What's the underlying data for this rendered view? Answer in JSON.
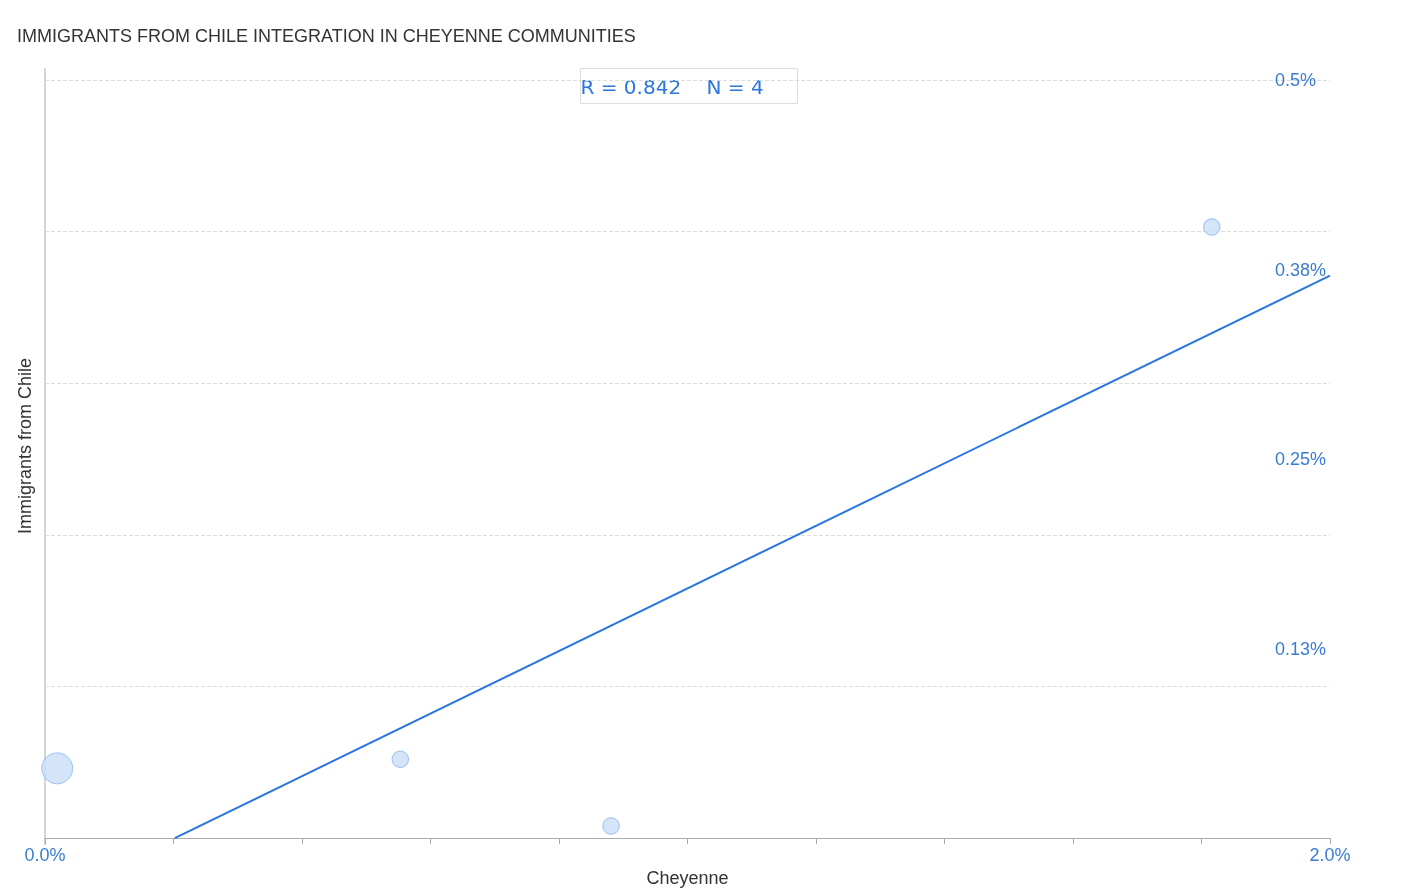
{
  "chart_data": {
    "type": "bubble",
    "title": "IMMIGRANTS FROM CHILE INTEGRATION IN CHEYENNE COMMUNITIES",
    "xlabel": "Cheyenne",
    "ylabel": "Immigrants from Chile",
    "annotations": [
      "R = 0.842    N = 4"
    ],
    "series": [
      {
        "marker": "circle",
        "color": "#c9ddf7",
        "x": [
          0.019,
          0.553,
          0.881,
          1.816
        ],
        "values": [
          0.046,
          0.052,
          0.008,
          0.403
        ],
        "sizes": [
          1,
          0.28,
          0.28,
          0.28
        ]
      },
      {
        "type": "line",
        "color": "#2a76dd",
        "x": [
          0.202,
          2.0
        ],
        "values": [
          0,
          0.371
        ]
      }
    ],
    "xlim": [
      0,
      2.0
    ],
    "xticks": [
      {
        "value": 0,
        "label": "0.0%"
      },
      {
        "value": 0.2,
        "label": null
      },
      {
        "value": 0.4,
        "label": null
      },
      {
        "value": 0.6,
        "label": null
      },
      {
        "value": 0.8,
        "label": null
      },
      {
        "value": 1.0,
        "label": null
      },
      {
        "value": 1.2,
        "label": null
      },
      {
        "value": 1.4,
        "label": null
      },
      {
        "value": 1.6,
        "label": null
      },
      {
        "value": 1.8,
        "label": null
      },
      {
        "value": 2.0,
        "label": "2.0%"
      }
    ],
    "ylim": [
      0,
      0.5
    ],
    "yticks": [
      {
        "value": 0.125,
        "label": "0.13%"
      },
      {
        "value": 0.25,
        "label": "0.25%"
      },
      {
        "value": 0.375,
        "label": "0.38%"
      },
      {
        "value": 0.5,
        "label": "0.5%"
      }
    ],
    "grid": "y"
  }
}
